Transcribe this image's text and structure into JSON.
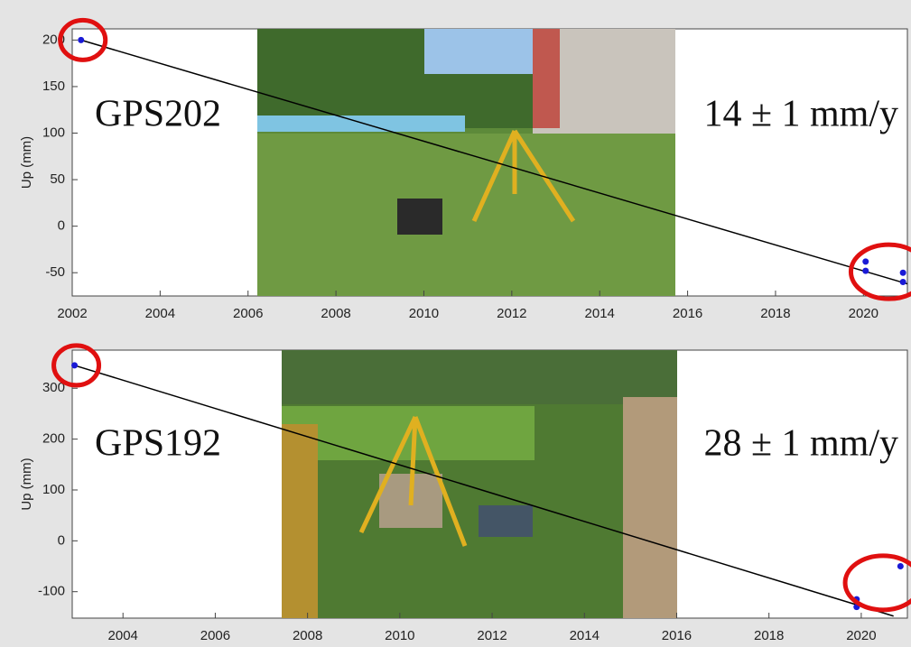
{
  "chart_data": [
    {
      "type": "scatter",
      "ylabel": "Up (mm)",
      "annotations": [
        "GPS202",
        "14 ± 1 mm/y"
      ],
      "xlim": [
        2002,
        2021
      ],
      "xticks": [
        2002,
        2004,
        2006,
        2008,
        2010,
        2012,
        2014,
        2016,
        2018,
        2020
      ],
      "ylim": [
        -75,
        212
      ],
      "yticks": [
        -50,
        0,
        50,
        100,
        150,
        200
      ],
      "series": [
        {
          "color": "#1a1ad6",
          "x": [
            2002.2,
            2020.05,
            2020.05,
            2020.9,
            2020.9
          ],
          "values": [
            200,
            -38,
            -48,
            -50,
            -60
          ]
        }
      ],
      "trend_line": {
        "color": "#000000",
        "x": [
          2002.2,
          2021
        ],
        "values": [
          200,
          -62
        ]
      }
    },
    {
      "type": "scatter",
      "ylabel": "Up (mm)",
      "annotations": [
        "GPS192",
        "28 ± 1 mm/y"
      ],
      "xlim": [
        2002.9,
        2021
      ],
      "xticks": [
        2004,
        2006,
        2008,
        2010,
        2012,
        2014,
        2016,
        2018,
        2020
      ],
      "ylim": [
        -152,
        375
      ],
      "yticks": [
        -100,
        0,
        100,
        200,
        300
      ],
      "series": [
        {
          "color": "#1a1ad6",
          "x": [
            2002.95,
            2019.9,
            2019.9,
            2020.85
          ],
          "values": [
            345,
            -115,
            -130,
            -50
          ]
        }
      ],
      "trend_line": {
        "color": "#000000",
        "x": [
          2002.95,
          2020.7
        ],
        "values": [
          345,
          -148
        ]
      }
    }
  ]
}
